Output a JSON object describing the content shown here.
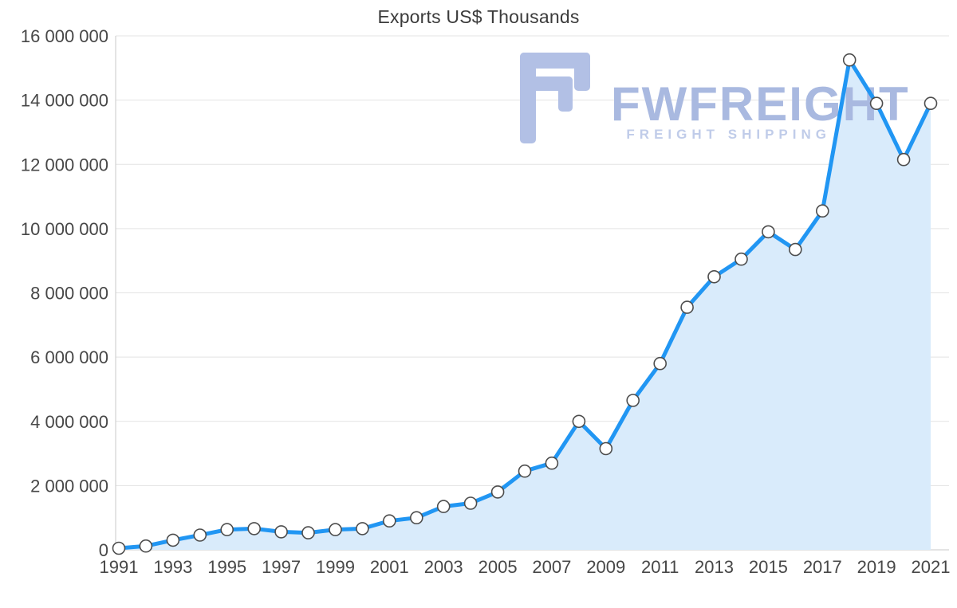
{
  "watermark": {
    "brand": "FWFREIGHT",
    "tagline": "FREIGHT SHIPPING"
  },
  "chart_data": {
    "type": "area",
    "title": "Exports US$ Thousands",
    "xlabel": "",
    "ylabel": "",
    "x": [
      1991,
      1992,
      1993,
      1994,
      1995,
      1996,
      1997,
      1998,
      1999,
      2000,
      2001,
      2002,
      2003,
      2004,
      2005,
      2006,
      2007,
      2008,
      2009,
      2010,
      2011,
      2012,
      2013,
      2014,
      2015,
      2016,
      2017,
      2018,
      2019,
      2020,
      2021
    ],
    "series": [
      {
        "name": "Exports US$ Thousands",
        "values": [
          50000,
          120000,
          300000,
          460000,
          630000,
          660000,
          560000,
          530000,
          630000,
          660000,
          900000,
          1000000,
          1350000,
          1450000,
          1800000,
          2450000,
          2700000,
          4000000,
          3150000,
          4650000,
          5800000,
          7550000,
          8500000,
          9050000,
          9900000,
          9350000,
          10550000,
          15250000,
          13900000,
          12150000,
          13900000
        ]
      }
    ],
    "ylim": [
      0,
      16000000
    ],
    "ytick_step": 2000000,
    "ytick_labels": [
      "0",
      "2 000 000",
      "4 000 000",
      "6 000 000",
      "8 000 000",
      "10 000 000",
      "12 000 000",
      "14 000 000",
      "16 000 000"
    ],
    "xtick_labels": [
      "1991",
      "1993",
      "1995",
      "1997",
      "1999",
      "2001",
      "2003",
      "2005",
      "2007",
      "2009",
      "2011",
      "2013",
      "2015",
      "2017",
      "2019",
      "2021"
    ],
    "grid": true,
    "legend": "none",
    "marker": "circle-white",
    "colors": {
      "line": "#2196f3",
      "area": "#d9ebfb",
      "marker_fill": "#ffffff",
      "marker_stroke": "#4d4d4d",
      "grid": "#e3e3e3",
      "axis": "#c9c9c9",
      "text": "#474747",
      "watermark": "#a9b9e0"
    }
  }
}
